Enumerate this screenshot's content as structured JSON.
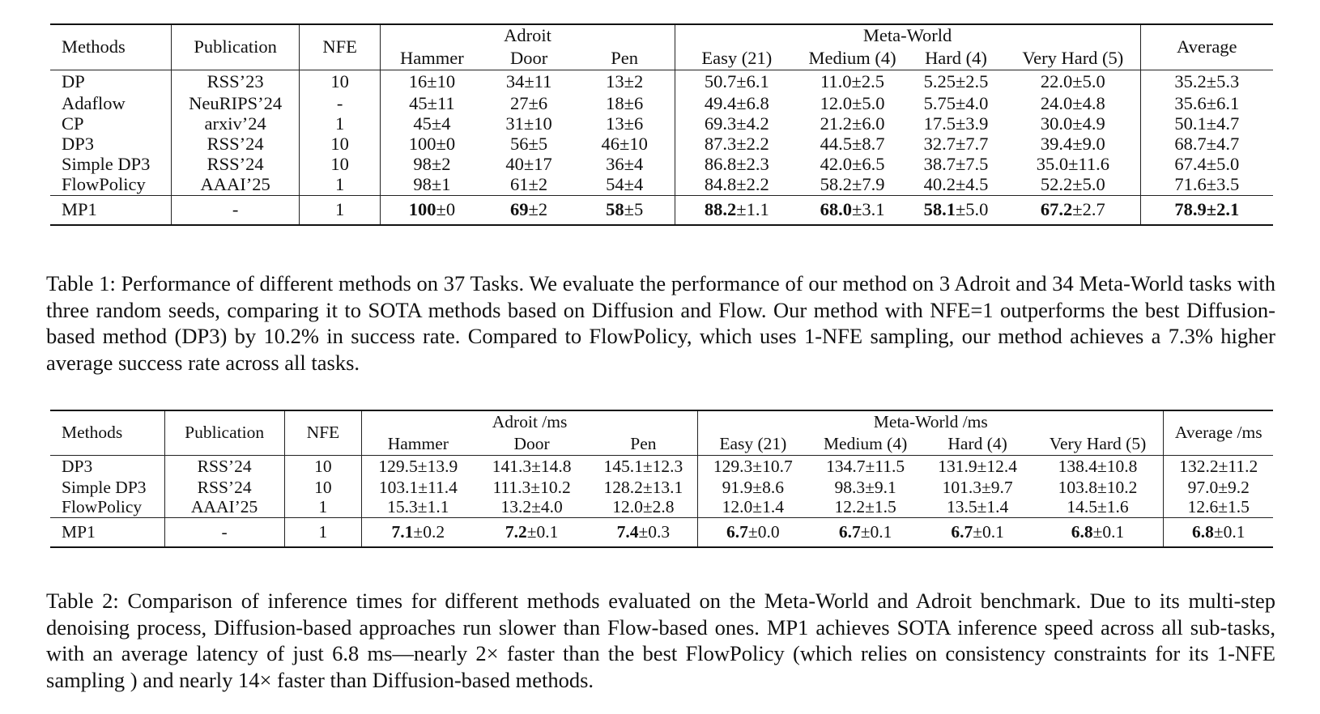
{
  "table1": {
    "headers": {
      "methods": "Methods",
      "publication": "Publication",
      "nfe": "NFE",
      "group_adroit": "Adroit",
      "group_metaworld": "Meta-World",
      "average": "Average",
      "sub": [
        "Hammer",
        "Door",
        "Pen",
        "Easy (21)",
        "Medium (4)",
        "Hard (4)",
        "Very Hard (5)"
      ]
    },
    "rows": [
      {
        "method": "DP",
        "pub": "RSS’23",
        "nfe": "10",
        "cells": [
          "16±10",
          "34±11",
          "13±2",
          "50.7±6.1",
          "11.0±2.5",
          "5.25±2.5",
          "22.0±5.0",
          "35.2±5.3"
        ]
      },
      {
        "method": "Adaflow",
        "pub": "NeuRIPS’24",
        "nfe": "-",
        "cells": [
          "45±11",
          "27±6",
          "18±6",
          "49.4±6.8",
          "12.0±5.0",
          "5.75±4.0",
          "24.0±4.8",
          "35.6±6.1"
        ]
      },
      {
        "method": "CP",
        "pub": "arxiv’24",
        "nfe": "1",
        "cells": [
          "45±4",
          "31±10",
          "13±6",
          "69.3±4.2",
          "21.2±6.0",
          "17.5±3.9",
          "30.0±4.9",
          "50.1±4.7"
        ]
      },
      {
        "method": "DP3",
        "pub": "RSS’24",
        "nfe": "10",
        "cells": [
          "100±0",
          "56±5",
          "46±10",
          "87.3±2.2",
          "44.5±8.7",
          "32.7±7.7",
          "39.4±9.0",
          "68.7±4.7"
        ]
      },
      {
        "method": "Simple DP3",
        "pub": "RSS’24",
        "nfe": "10",
        "cells": [
          "98±2",
          "40±17",
          "36±4",
          "86.8±2.3",
          "42.0±6.5",
          "38.7±7.5",
          "35.0±11.6",
          "67.4±5.0"
        ]
      },
      {
        "method": "FlowPolicy",
        "pub": "AAAI’25",
        "nfe": "1",
        "cells": [
          "98±1",
          "61±2",
          "54±4",
          "84.8±2.2",
          "58.2±7.9",
          "40.2±4.5",
          "52.2±5.0",
          "71.6±3.5"
        ]
      }
    ],
    "ours": {
      "method": "MP1",
      "pub": "-",
      "nfe": "1",
      "cells": [
        {
          "bold": "100",
          "rest": "±0"
        },
        {
          "bold": "69",
          "rest": "±2"
        },
        {
          "bold": "58",
          "rest": "±5"
        },
        {
          "bold": "88.2",
          "rest": "±1.1"
        },
        {
          "bold": "68.0",
          "rest": "±3.1"
        },
        {
          "bold": "58.1",
          "rest": "±5.0"
        },
        {
          "bold": "67.2",
          "rest": "±2.7"
        },
        {
          "bold": "78.9±2.1",
          "rest": ""
        }
      ]
    },
    "caption": "Table 1: Performance of different methods on 37 Tasks. We evaluate the performance of our method on 3 Adroit and 34 Meta-World tasks with three random seeds, comparing it to SOTA methods based on Diffusion and Flow. Our method with NFE=1 outperforms the best Diffusion-based method (DP3) by 10.2% in success rate. Compared to FlowPolicy, which uses 1-NFE sampling, our method achieves a 7.3% higher average success rate across all tasks."
  },
  "table2": {
    "headers": {
      "methods": "Methods",
      "publication": "Publication",
      "nfe": "NFE",
      "group_adroit": "Adroit /ms",
      "group_metaworld": "Meta-World /ms",
      "average": "Average /ms",
      "sub": [
        "Hammer",
        "Door",
        "Pen",
        "Easy (21)",
        "Medium (4)",
        "Hard (4)",
        "Very Hard (5)"
      ]
    },
    "rows": [
      {
        "method": "DP3",
        "pub": "RSS’24",
        "nfe": "10",
        "cells": [
          "129.5±13.9",
          "141.3±14.8",
          "145.1±12.3",
          "129.3±10.7",
          "134.7±11.5",
          "131.9±12.4",
          "138.4±10.8",
          "132.2±11.2"
        ]
      },
      {
        "method": "Simple DP3",
        "pub": "RSS’24",
        "nfe": "10",
        "cells": [
          "103.1±11.4",
          "111.3±10.2",
          "128.2±13.1",
          "91.9±8.6",
          "98.3±9.1",
          "101.3±9.7",
          "103.8±10.2",
          "97.0±9.2"
        ]
      },
      {
        "method": "FlowPolicy",
        "pub": "AAAI’25",
        "nfe": "1",
        "cells": [
          "15.3±1.1",
          "13.2±4.0",
          "12.0±2.8",
          "12.0±1.4",
          "12.2±1.5",
          "13.5±1.4",
          "14.5±1.6",
          "12.6±1.5"
        ]
      }
    ],
    "ours": {
      "method": "MP1",
      "pub": "-",
      "nfe": "1",
      "cells": [
        {
          "bold": "7.1",
          "rest": "±0.2"
        },
        {
          "bold": "7.2",
          "rest": "±0.1"
        },
        {
          "bold": "7.4",
          "rest": "±0.3"
        },
        {
          "bold": "6.7",
          "rest": "±0.0"
        },
        {
          "bold": "6.7",
          "rest": "±0.1"
        },
        {
          "bold": "6.7",
          "rest": "±0.1"
        },
        {
          "bold": "6.8",
          "rest": "±0.1"
        },
        {
          "bold": "6.8",
          "rest": "±0.1"
        }
      ]
    },
    "caption": "Table 2: Comparison of inference times for different methods evaluated on the Meta-World and Adroit benchmark. Due to its multi-step denoising process, Diffusion-based approaches run slower than Flow-based ones. MP1 achieves SOTA inference speed across all sub-tasks, with an average latency of just 6.8 ms—nearly 2× faster than the best FlowPolicy (which relies on consistency constraints for its 1-NFE sampling ) and nearly 14× faster than Diffusion-based methods."
  }
}
